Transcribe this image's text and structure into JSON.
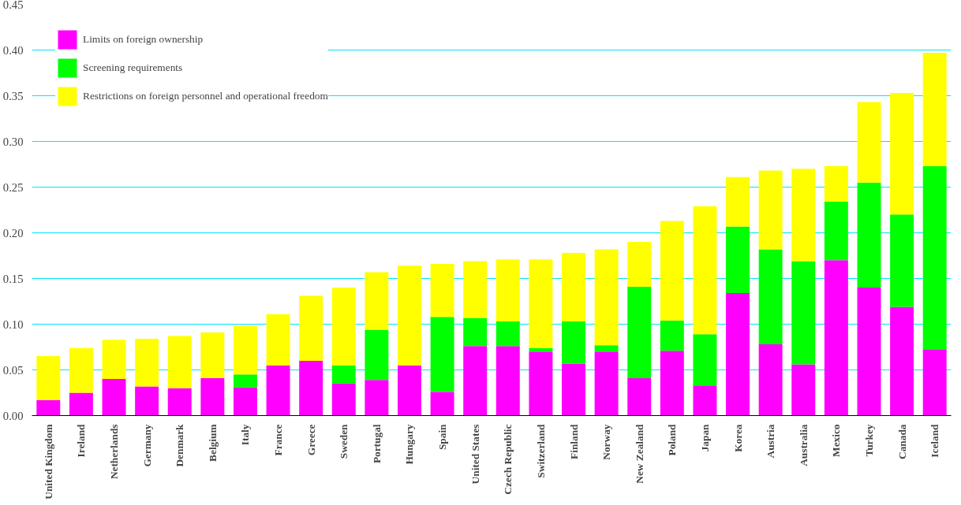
{
  "chart_data": {
    "type": "bar",
    "stacked": true,
    "categories": [
      "United Kingdom",
      "Ireland",
      "Netherlands",
      "Germany",
      "Denmark",
      "Belgium",
      "Italy",
      "France",
      "Greece",
      "Sweden",
      "Portugal",
      "Hungary",
      "Spain",
      "United States",
      "Czech Republic",
      "Switzerland",
      "Finland",
      "Norway",
      "New Zealand",
      "Poland",
      "Japan",
      "Korea",
      "Austria",
      "Australia",
      "Mexico",
      "Turkey",
      "Canada",
      "Iceland"
    ],
    "series": [
      {
        "name": "Limits on foreign ownership",
        "color": "#ff00ff",
        "values": [
          0.017,
          0.025,
          0.04,
          0.032,
          0.03,
          0.041,
          0.031,
          0.055,
          0.06,
          0.035,
          0.039,
          0.055,
          0.026,
          0.076,
          0.076,
          0.07,
          0.057,
          0.07,
          0.041,
          0.071,
          0.033,
          0.134,
          0.078,
          0.056,
          0.17,
          0.14,
          0.119,
          0.072
        ]
      },
      {
        "name": "Screening requirements",
        "color": "#00ff00",
        "values": [
          0,
          0,
          0,
          0,
          0,
          0,
          0.014,
          0,
          0,
          0.02,
          0.055,
          0,
          0.082,
          0.031,
          0.027,
          0.004,
          0.046,
          0.007,
          0.1,
          0.033,
          0.056,
          0.073,
          0.104,
          0.113,
          0.064,
          0.115,
          0.101,
          0.201
        ]
      },
      {
        "name": "Restrictions on foreign personnel and operational freedom",
        "color": "#ffff00",
        "values": [
          0.048,
          0.049,
          0.043,
          0.052,
          0.057,
          0.05,
          0.053,
          0.056,
          0.071,
          0.085,
          0.063,
          0.109,
          0.058,
          0.062,
          0.068,
          0.097,
          0.075,
          0.105,
          0.049,
          0.109,
          0.14,
          0.054,
          0.086,
          0.101,
          0.039,
          0.088,
          0.133,
          0.124
        ]
      }
    ],
    "ylim": [
      0,
      0.45
    ],
    "yticks": [
      {
        "value": 0,
        "label": "0.00"
      },
      {
        "value": 0.05,
        "label": "0.05"
      },
      {
        "value": 0.1,
        "label": "0.10"
      },
      {
        "value": 0.15,
        "label": "0.15"
      },
      {
        "value": 0.2,
        "label": "0.20"
      },
      {
        "value": 0.25,
        "label": "0.25"
      },
      {
        "value": 0.3,
        "label": "0.30"
      },
      {
        "value": 0.35,
        "label": "0.35"
      },
      {
        "value": 0.4,
        "label": "0.40"
      },
      {
        "value": 0.45,
        "label": "0.45"
      }
    ],
    "grid": "y",
    "legend": "top left"
  }
}
